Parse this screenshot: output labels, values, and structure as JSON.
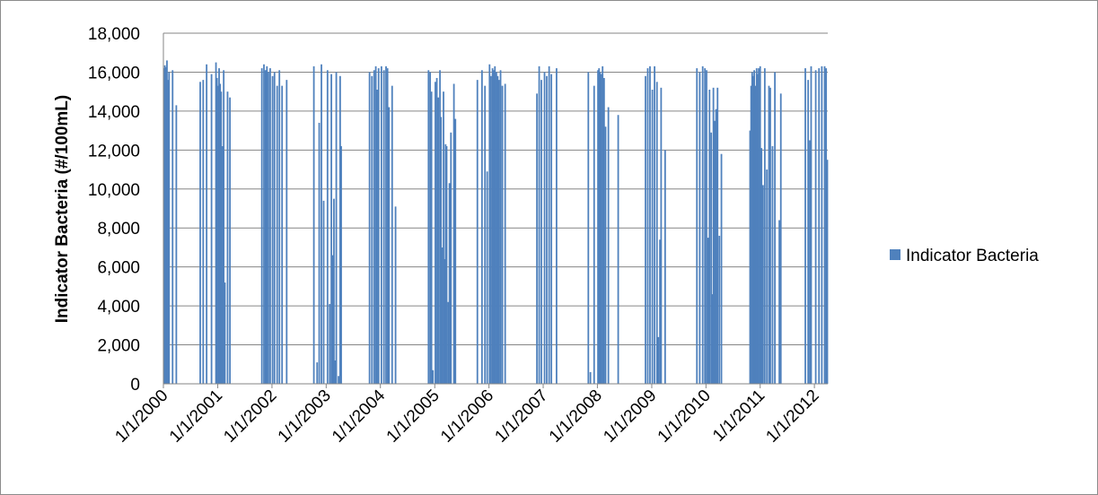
{
  "chart_data": {
    "type": "bar",
    "title": "",
    "xlabel": "",
    "ylabel": "Indicator Bacteria (#/100mL)",
    "ylim": [
      0,
      18000
    ],
    "y_ticks": [
      0,
      2000,
      4000,
      6000,
      8000,
      10000,
      12000,
      14000,
      16000,
      18000
    ],
    "y_tick_labels": [
      "0",
      "2,000",
      "4,000",
      "6,000",
      "8,000",
      "10,000",
      "12,000",
      "14,000",
      "16,000",
      "18,000"
    ],
    "x_range": [
      "1/1/2000",
      "3/31/2012"
    ],
    "x_tick_labels": [
      "1/1/2000",
      "1/1/2001",
      "1/1/2002",
      "1/1/2003",
      "1/1/2004",
      "1/1/2005",
      "1/1/2006",
      "1/1/2007",
      "1/1/2008",
      "1/1/2009",
      "1/1/2010",
      "1/1/2011",
      "1/1/2012"
    ],
    "grid": "horizontal",
    "legend": "right",
    "series": [
      {
        "name": "Indicator Bacteria",
        "color": "#4F81BD",
        "points": [
          {
            "x": "1/7/2000",
            "y": 16200
          },
          {
            "x": "1/11/2000",
            "y": 16350
          },
          {
            "x": "1/15/2000",
            "y": 16000
          },
          {
            "x": "1/20/2000",
            "y": 16250
          },
          {
            "x": "1/25/2000",
            "y": 16600
          },
          {
            "x": "1/29/2000",
            "y": 15600
          },
          {
            "x": "2/3/2000",
            "y": 12900
          },
          {
            "x": "2/8/2000",
            "y": 16000
          },
          {
            "x": "3/3/2000",
            "y": 16100
          },
          {
            "x": "3/28/2000",
            "y": 14300
          },
          {
            "x": "9/5/2000",
            "y": 15500
          },
          {
            "x": "9/25/2000",
            "y": 15600
          },
          {
            "x": "10/18/2000",
            "y": 16400
          },
          {
            "x": "11/20/2000",
            "y": 15900
          },
          {
            "x": "12/20/2000",
            "y": 16500
          },
          {
            "x": "12/27/2000",
            "y": 15700
          },
          {
            "x": "1/3/2001",
            "y": 15300
          },
          {
            "x": "1/10/2001",
            "y": 16200
          },
          {
            "x": "1/17/2001",
            "y": 15400
          },
          {
            "x": "1/24/2001",
            "y": 15000
          },
          {
            "x": "2/1/2001",
            "y": 12200
          },
          {
            "x": "2/10/2001",
            "y": 16100
          },
          {
            "x": "2/18/2001",
            "y": 5200
          },
          {
            "x": "3/8/2001",
            "y": 15000
          },
          {
            "x": "3/24/2001",
            "y": 14700
          },
          {
            "x": "10/25/2001",
            "y": 16200
          },
          {
            "x": "11/8/2001",
            "y": 16400
          },
          {
            "x": "11/18/2001",
            "y": 16100
          },
          {
            "x": "11/28/2001",
            "y": 16300
          },
          {
            "x": "12/8/2001",
            "y": 16000
          },
          {
            "x": "12/20/2001",
            "y": 16200
          },
          {
            "x": "1/5/2002",
            "y": 15800
          },
          {
            "x": "1/18/2002",
            "y": 16000
          },
          {
            "x": "2/5/2002",
            "y": 15300
          },
          {
            "x": "2/20/2002",
            "y": 16100
          },
          {
            "x": "3/10/2002",
            "y": 15300
          },
          {
            "x": "4/10/2002",
            "y": 15600
          },
          {
            "x": "10/10/2002",
            "y": 16300
          },
          {
            "x": "11/1/2002",
            "y": 1100
          },
          {
            "x": "11/15/2002",
            "y": 13400
          },
          {
            "x": "11/30/2002",
            "y": 16400
          },
          {
            "x": "12/15/2002",
            "y": 9400
          },
          {
            "x": "1/10/2003",
            "y": 16100
          },
          {
            "x": "1/25/2003",
            "y": 4100
          },
          {
            "x": "2/5/2003",
            "y": 15900
          },
          {
            "x": "2/15/2003",
            "y": 6600
          },
          {
            "x": "2/22/2003",
            "y": 9500
          },
          {
            "x": "3/1/2003",
            "y": 1200
          },
          {
            "x": "3/10/2003",
            "y": 16000
          },
          {
            "x": "3/25/2003",
            "y": 400
          },
          {
            "x": "4/5/2003",
            "y": 15800
          },
          {
            "x": "4/12/2003",
            "y": 12200
          },
          {
            "x": "10/20/2003",
            "y": 16000
          },
          {
            "x": "11/5/2003",
            "y": 15800
          },
          {
            "x": "11/20/2003",
            "y": 16100
          },
          {
            "x": "12/1/2003",
            "y": 16300
          },
          {
            "x": "12/10/2003",
            "y": 15100
          },
          {
            "x": "12/20/2003",
            "y": 16200
          },
          {
            "x": "1/8/2004",
            "y": 16300
          },
          {
            "x": "1/25/2004",
            "y": 16100
          },
          {
            "x": "2/8/2004",
            "y": 16300
          },
          {
            "x": "2/18/2004",
            "y": 16200
          },
          {
            "x": "2/28/2004",
            "y": 14200
          },
          {
            "x": "3/20/2004",
            "y": 15300
          },
          {
            "x": "4/12/2004",
            "y": 9100
          },
          {
            "x": "11/20/2004",
            "y": 16100
          },
          {
            "x": "12/1/2004",
            "y": 16000
          },
          {
            "x": "12/10/2004",
            "y": 15000
          },
          {
            "x": "12/20/2004",
            "y": 700
          },
          {
            "x": "1/5/2005",
            "y": 15500
          },
          {
            "x": "1/15/2005",
            "y": 15700
          },
          {
            "x": "1/25/2005",
            "y": 14700
          },
          {
            "x": "2/5/2005",
            "y": 16100
          },
          {
            "x": "2/12/2005",
            "y": 13700
          },
          {
            "x": "2/20/2005",
            "y": 7000
          },
          {
            "x": "3/1/2005",
            "y": 15000
          },
          {
            "x": "3/8/2005",
            "y": 6400
          },
          {
            "x": "3/15/2005",
            "y": 12300
          },
          {
            "x": "3/22/2005",
            "y": 12200
          },
          {
            "x": "4/1/2005",
            "y": 4200
          },
          {
            "x": "4/10/2005",
            "y": 10300
          },
          {
            "x": "4/20/2005",
            "y": 12900
          },
          {
            "x": "5/10/2005",
            "y": 15400
          },
          {
            "x": "5/20/2005",
            "y": 13600
          },
          {
            "x": "10/15/2005",
            "y": 15600
          },
          {
            "x": "11/15/2005",
            "y": 16100
          },
          {
            "x": "12/5/2005",
            "y": 15300
          },
          {
            "x": "12/20/2005",
            "y": 10900
          },
          {
            "x": "1/5/2006",
            "y": 16400
          },
          {
            "x": "1/15/2006",
            "y": 15800
          },
          {
            "x": "1/25/2006",
            "y": 16200
          },
          {
            "x": "2/1/2006",
            "y": 16100
          },
          {
            "x": "2/10/2006",
            "y": 16300
          },
          {
            "x": "2/20/2006",
            "y": 16000
          },
          {
            "x": "3/1/2006",
            "y": 15800
          },
          {
            "x": "3/10/2006",
            "y": 15600
          },
          {
            "x": "3/20/2006",
            "y": 16100
          },
          {
            "x": "4/1/2006",
            "y": 15300
          },
          {
            "x": "4/20/2006",
            "y": 15400
          },
          {
            "x": "11/20/2006",
            "y": 14900
          },
          {
            "x": "12/5/2006",
            "y": 16300
          },
          {
            "x": "12/20/2006",
            "y": 15600
          },
          {
            "x": "1/10/2007",
            "y": 16000
          },
          {
            "x": "1/25/2007",
            "y": 15800
          },
          {
            "x": "2/10/2007",
            "y": 16300
          },
          {
            "x": "2/25/2007",
            "y": 15900
          },
          {
            "x": "4/1/2007",
            "y": 16200
          },
          {
            "x": "11/1/2007",
            "y": 16000
          },
          {
            "x": "11/15/2007",
            "y": 600
          },
          {
            "x": "12/10/2007",
            "y": 15300
          },
          {
            "x": "1/5/2008",
            "y": 16100
          },
          {
            "x": "1/12/2008",
            "y": 16200
          },
          {
            "x": "1/19/2008",
            "y": 16000
          },
          {
            "x": "1/26/2008",
            "y": 15900
          },
          {
            "x": "2/5/2008",
            "y": 16300
          },
          {
            "x": "2/15/2008",
            "y": 15700
          },
          {
            "x": "2/25/2008",
            "y": 13200
          },
          {
            "x": "3/15/2008",
            "y": 14200
          },
          {
            "x": "5/20/2008",
            "y": 13800
          },
          {
            "x": "11/20/2008",
            "y": 15800
          },
          {
            "x": "12/5/2008",
            "y": 16200
          },
          {
            "x": "12/20/2008",
            "y": 16300
          },
          {
            "x": "1/5/2009",
            "y": 15100
          },
          {
            "x": "1/20/2009",
            "y": 16300
          },
          {
            "x": "2/5/2009",
            "y": 15500
          },
          {
            "x": "2/15/2009",
            "y": 2400
          },
          {
            "x": "2/25/2009",
            "y": 7400
          },
          {
            "x": "3/5/2009",
            "y": 15200
          },
          {
            "x": "4/1/2009",
            "y": 12000
          },
          {
            "x": "11/1/2009",
            "y": 16200
          },
          {
            "x": "11/20/2009",
            "y": 16000
          },
          {
            "x": "12/10/2009",
            "y": 16300
          },
          {
            "x": "12/25/2009",
            "y": 16200
          },
          {
            "x": "1/5/2010",
            "y": 16100
          },
          {
            "x": "1/15/2010",
            "y": 7500
          },
          {
            "x": "1/25/2010",
            "y": 15100
          },
          {
            "x": "2/5/2010",
            "y": 12900
          },
          {
            "x": "2/12/2010",
            "y": 4600
          },
          {
            "x": "2/20/2010",
            "y": 15200
          },
          {
            "x": "3/1/2010",
            "y": 13500
          },
          {
            "x": "3/10/2010",
            "y": 14100
          },
          {
            "x": "3/20/2010",
            "y": 15200
          },
          {
            "x": "4/1/2010",
            "y": 7600
          },
          {
            "x": "4/15/2010",
            "y": 11800
          },
          {
            "x": "10/25/2010",
            "y": 13000
          },
          {
            "x": "11/1/2010",
            "y": 15300
          },
          {
            "x": "11/8/2010",
            "y": 16000
          },
          {
            "x": "11/15/2010",
            "y": 15800
          },
          {
            "x": "11/22/2010",
            "y": 16100
          },
          {
            "x": "11/30/2010",
            "y": 15300
          },
          {
            "x": "12/8/2010",
            "y": 16200
          },
          {
            "x": "12/15/2010",
            "y": 15900
          },
          {
            "x": "12/22/2010",
            "y": 16200
          },
          {
            "x": "1/1/2011",
            "y": 16300
          },
          {
            "x": "1/10/2011",
            "y": 12100
          },
          {
            "x": "1/20/2011",
            "y": 10200
          },
          {
            "x": "2/1/2011",
            "y": 16200
          },
          {
            "x": "2/15/2011",
            "y": 11000
          },
          {
            "x": "3/1/2011",
            "y": 15300
          },
          {
            "x": "3/10/2011",
            "y": 15200
          },
          {
            "x": "3/25/2011",
            "y": 12200
          },
          {
            "x": "4/10/2011",
            "y": 16000
          },
          {
            "x": "5/10/2011",
            "y": 8400
          },
          {
            "x": "5/20/2011",
            "y": 14900
          },
          {
            "x": "11/1/2011",
            "y": 16200
          },
          {
            "x": "11/20/2011",
            "y": 15600
          },
          {
            "x": "12/1/2011",
            "y": 12500
          },
          {
            "x": "12/10/2011",
            "y": 16300
          },
          {
            "x": "1/10/2012",
            "y": 16100
          },
          {
            "x": "2/1/2012",
            "y": 16200
          },
          {
            "x": "2/20/2012",
            "y": 16300
          },
          {
            "x": "3/10/2012",
            "y": 16300
          },
          {
            "x": "3/20/2012",
            "y": 16200
          },
          {
            "x": "3/28/2012",
            "y": 11500
          }
        ]
      }
    ]
  }
}
